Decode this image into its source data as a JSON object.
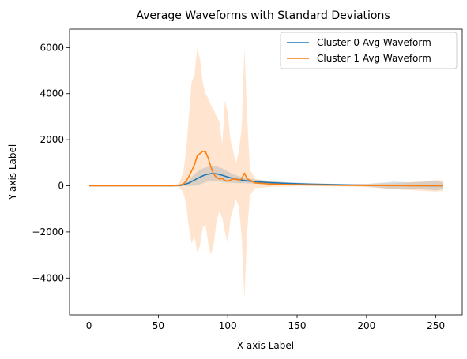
{
  "chart_data": {
    "type": "line",
    "title": "Average Waveforms with Standard Deviations",
    "xlabel": "X-axis Label",
    "ylabel": "Y-axis Label",
    "xlim": [
      -14,
      269
    ],
    "ylim": [
      -5600,
      6800
    ],
    "x_ticks": [
      0,
      50,
      100,
      150,
      200,
      250
    ],
    "y_ticks": [
      -4000,
      -2000,
      0,
      2000,
      4000,
      6000
    ],
    "y_tick_labels": [
      "−4000",
      "−2000",
      "0",
      "2000",
      "4000",
      "6000"
    ],
    "grid": false,
    "legend_position": "top-right",
    "series": [
      {
        "name": "Cluster 0 Avg Waveform",
        "color": "#1f77b4",
        "band_color": "#1f77b4",
        "band_opacity": 0.2,
        "x": [
          0,
          50,
          60,
          65,
          68,
          72,
          76,
          80,
          84,
          88,
          92,
          96,
          100,
          105,
          110,
          115,
          120,
          130,
          140,
          150,
          160,
          170,
          180,
          190,
          200,
          210,
          220,
          230,
          240,
          250,
          255
        ],
        "mean": [
          0,
          0,
          0,
          10,
          40,
          120,
          250,
          380,
          480,
          530,
          520,
          460,
          380,
          300,
          250,
          210,
          180,
          140,
          110,
          90,
          70,
          60,
          45,
          35,
          25,
          20,
          15,
          10,
          8,
          5,
          3
        ],
        "upper": [
          0,
          0,
          5,
          25,
          80,
          250,
          500,
          700,
          800,
          850,
          840,
          760,
          620,
          480,
          380,
          320,
          270,
          210,
          170,
          140,
          120,
          100,
          80,
          70,
          80,
          130,
          180,
          150,
          170,
          220,
          150
        ],
        "lower": [
          0,
          0,
          -5,
          -5,
          0,
          -10,
          0,
          60,
          160,
          210,
          200,
          160,
          140,
          120,
          120,
          100,
          90,
          70,
          50,
          40,
          20,
          20,
          10,
          0,
          -30,
          -90,
          -150,
          -130,
          -150,
          -200,
          -150
        ]
      },
      {
        "name": "Cluster 1 Avg Waveform",
        "color": "#ff7f0e",
        "band_color": "#ff7f0e",
        "band_opacity": 0.2,
        "x": [
          0,
          50,
          60,
          65,
          68,
          70,
          72,
          74,
          76,
          78,
          80,
          82,
          84,
          86,
          88,
          90,
          92,
          94,
          96,
          98,
          100,
          102,
          104,
          106,
          108,
          110,
          112,
          114,
          116,
          118,
          120,
          130,
          140,
          150,
          160,
          170,
          180,
          190,
          200,
          210,
          220,
          230,
          240,
          250,
          255
        ],
        "mean": [
          0,
          0,
          0,
          20,
          80,
          200,
          400,
          650,
          900,
          1300,
          1400,
          1500,
          1480,
          1200,
          800,
          500,
          350,
          300,
          320,
          230,
          200,
          250,
          300,
          280,
          250,
          300,
          550,
          300,
          250,
          180,
          120,
          80,
          60,
          50,
          40,
          30,
          25,
          20,
          15,
          10,
          8,
          5,
          3,
          2,
          1
        ],
        "upper": [
          0,
          0,
          10,
          100,
          600,
          1500,
          3000,
          4500,
          4800,
          6000,
          5500,
          4500,
          4000,
          3800,
          3500,
          3300,
          3000,
          2800,
          1800,
          3700,
          3200,
          2000,
          1500,
          1000,
          1500,
          2500,
          6000,
          3000,
          700,
          500,
          300,
          200,
          150,
          120,
          100,
          80,
          70,
          80,
          90,
          100,
          110,
          150,
          200,
          250,
          230
        ],
        "lower": [
          0,
          0,
          -10,
          -50,
          -300,
          -800,
          -1800,
          -2500,
          -2200,
          -2900,
          -2600,
          -1800,
          -1700,
          -2500,
          -3000,
          -2500,
          -1500,
          -1100,
          -1400,
          -2000,
          -2500,
          -1400,
          -1000,
          -600,
          -900,
          -2200,
          -4900,
          -2000,
          -400,
          -250,
          -100,
          -50,
          -30,
          -20,
          -20,
          -20,
          -30,
          -40,
          -60,
          -100,
          -150,
          -180,
          -220,
          -250,
          -230
        ]
      }
    ]
  }
}
